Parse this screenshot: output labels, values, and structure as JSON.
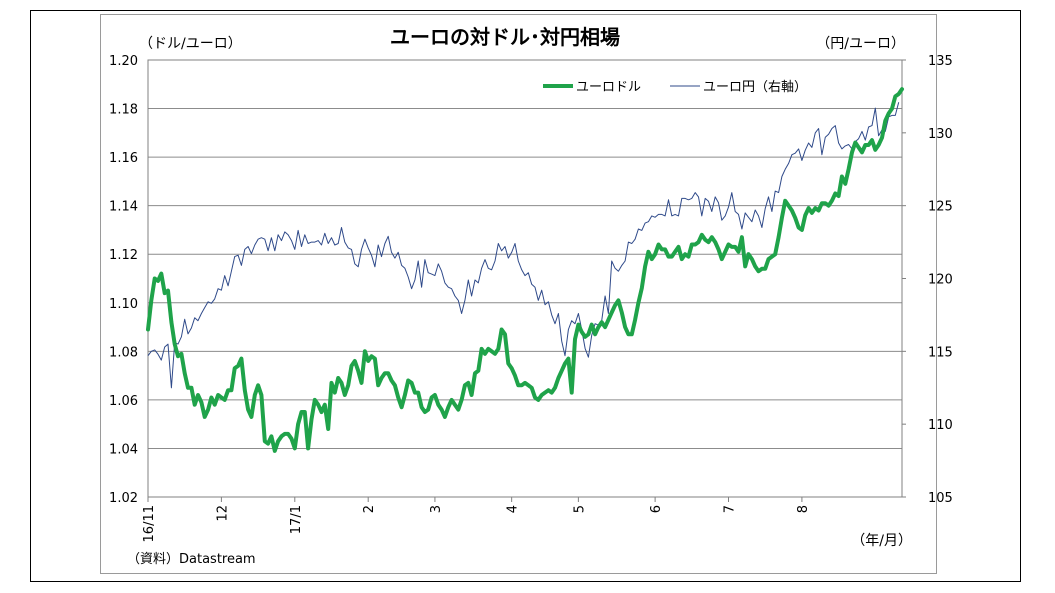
{
  "chart_data": {
    "type": "line",
    "title": "ユーロの対ドル･対円相場",
    "left_axis_unit": "（ドル/ユーロ）",
    "right_axis_unit": "（円/ユーロ）",
    "x_axis_unit": "（年/月）",
    "source": "（資料）Datastream",
    "left_ylim": [
      1.02,
      1.2
    ],
    "left_ticks": [
      "1.02",
      "1.04",
      "1.06",
      "1.08",
      "1.10",
      "1.12",
      "1.14",
      "1.16",
      "1.18",
      "1.20"
    ],
    "right_ylim": [
      105,
      135
    ],
    "right_ticks": [
      "105",
      "110",
      "115",
      "120",
      "125",
      "130",
      "135"
    ],
    "x_ticks": [
      {
        "label": "16/11",
        "pos": 0
      },
      {
        "label": "12",
        "pos": 22
      },
      {
        "label": "17/1",
        "pos": 44
      },
      {
        "label": "2",
        "pos": 66
      },
      {
        "label": "3",
        "pos": 86
      },
      {
        "label": "4",
        "pos": 109
      },
      {
        "label": "5",
        "pos": 129
      },
      {
        "label": "6",
        "pos": 152
      },
      {
        "label": "7",
        "pos": 174
      },
      {
        "label": "8",
        "pos": 196
      }
    ],
    "grid": true,
    "legend_position": "top-right",
    "series": [
      {
        "name": "ユーロドル",
        "axis": "left",
        "color": "#1fa34a",
        "values": [
          1.089,
          1.101,
          1.11,
          1.109,
          1.112,
          1.104,
          1.105,
          1.092,
          1.083,
          1.078,
          1.079,
          1.071,
          1.065,
          1.065,
          1.058,
          1.062,
          1.059,
          1.053,
          1.056,
          1.061,
          1.058,
          1.062,
          1.061,
          1.06,
          1.064,
          1.064,
          1.073,
          1.074,
          1.077,
          1.064,
          1.056,
          1.053,
          1.062,
          1.066,
          1.062,
          1.043,
          1.042,
          1.045,
          1.039,
          1.043,
          1.045,
          1.046,
          1.046,
          1.044,
          1.04,
          1.05,
          1.055,
          1.055,
          1.04,
          1.052,
          1.06,
          1.058,
          1.055,
          1.058,
          1.048,
          1.067,
          1.063,
          1.069,
          1.067,
          1.062,
          1.066,
          1.074,
          1.076,
          1.072,
          1.067,
          1.08,
          1.076,
          1.078,
          1.077,
          1.066,
          1.069,
          1.071,
          1.071,
          1.068,
          1.066,
          1.061,
          1.057,
          1.062,
          1.068,
          1.067,
          1.063,
          1.063,
          1.057,
          1.055,
          1.056,
          1.061,
          1.062,
          1.058,
          1.056,
          1.053,
          1.057,
          1.06,
          1.058,
          1.056,
          1.06,
          1.066,
          1.067,
          1.062,
          1.071,
          1.072,
          1.081,
          1.079,
          1.081,
          1.08,
          1.079,
          1.081,
          1.089,
          1.087,
          1.075,
          1.073,
          1.07,
          1.066,
          1.066,
          1.067,
          1.066,
          1.065,
          1.061,
          1.06,
          1.062,
          1.063,
          1.064,
          1.063,
          1.065,
          1.069,
          1.072,
          1.075,
          1.077,
          1.063,
          1.085,
          1.091,
          1.088,
          1.086,
          1.087,
          1.091,
          1.087,
          1.09,
          1.092,
          1.09,
          1.093,
          1.096,
          1.099,
          1.101,
          1.096,
          1.09,
          1.087,
          1.087,
          1.093,
          1.1,
          1.106,
          1.115,
          1.121,
          1.118,
          1.12,
          1.124,
          1.122,
          1.122,
          1.119,
          1.119,
          1.121,
          1.123,
          1.118,
          1.12,
          1.119,
          1.124,
          1.124,
          1.125,
          1.128,
          1.126,
          1.125,
          1.127,
          1.125,
          1.122,
          1.118,
          1.121,
          1.124,
          1.123,
          1.123,
          1.121,
          1.127,
          1.115,
          1.12,
          1.118,
          1.115,
          1.113,
          1.114,
          1.114,
          1.118,
          1.119,
          1.12,
          1.127,
          1.135,
          1.142,
          1.14,
          1.138,
          1.135,
          1.131,
          1.13,
          1.136,
          1.139,
          1.137,
          1.139,
          1.138,
          1.141,
          1.141,
          1.14,
          1.142,
          1.145,
          1.144,
          1.152,
          1.149,
          1.155,
          1.162,
          1.166,
          1.164,
          1.162,
          1.165,
          1.165,
          1.167,
          1.163,
          1.165,
          1.168,
          1.175,
          1.178,
          1.18,
          1.185,
          1.186,
          1.188
        ]
      },
      {
        "name": "ユーロ円（右軸）",
        "axis": "right",
        "color": "#2f4a8a",
        "values": [
          114.7,
          115.0,
          115.1,
          114.8,
          114.4,
          115.3,
          115.5,
          112.5,
          115.6,
          115.5,
          116.0,
          117.2,
          116.2,
          116.6,
          117.3,
          117.1,
          117.6,
          118.0,
          118.4,
          118.3,
          118.6,
          119.3,
          119.2,
          120.2,
          119.5,
          120.5,
          121.5,
          121.6,
          120.9,
          122.0,
          122.2,
          121.7,
          122.3,
          122.7,
          122.8,
          122.7,
          121.9,
          122.8,
          121.9,
          123.0,
          122.6,
          123.2,
          123.0,
          122.6,
          122.0,
          123.3,
          122.2,
          123.0,
          122.4,
          122.5,
          122.5,
          122.6,
          122.3,
          123.1,
          122.4,
          122.8,
          122.3,
          122.4,
          123.5,
          122.5,
          122.1,
          122.0,
          121.0,
          120.8,
          122.0,
          122.7,
          122.1,
          121.6,
          120.8,
          122.3,
          121.5,
          122.4,
          122.9,
          121.8,
          121.4,
          121.8,
          120.9,
          120.7,
          120.1,
          119.3,
          119.9,
          121.2,
          119.4,
          121.3,
          120.4,
          120.3,
          120.2,
          121.0,
          120.5,
          119.7,
          119.4,
          119.3,
          118.8,
          118.5,
          117.6,
          118.5,
          119.9,
          118.8,
          119.9,
          119.7,
          120.7,
          121.3,
          120.7,
          120.6,
          121.2,
          122.4,
          121.9,
          122.2,
          121.4,
          121.8,
          122.4,
          121.2,
          120.6,
          120.2,
          120.4,
          119.6,
          119.4,
          118.5,
          119.2,
          118.2,
          118.4,
          117.5,
          116.9,
          117.6,
          115.7,
          114.7,
          116.5,
          117.1,
          116.9,
          117.6,
          116.5,
          115.2,
          114.6,
          116.1,
          116.9,
          116.8,
          117.1,
          118.8,
          117.6,
          121.2,
          120.7,
          120.5,
          120.9,
          121.2,
          122.5,
          122.4,
          122.7,
          123.4,
          123.3,
          123.8,
          123.9,
          124.3,
          124.2,
          124.4,
          124.4,
          124.3,
          125.4,
          124.3,
          124.4,
          124.3,
          125.5,
          125.5,
          125.4,
          125.5,
          125.9,
          125.6,
          124.3,
          125.5,
          125.3,
          124.6,
          125.6,
          125.2,
          124.0,
          124.3,
          124.9,
          125.9,
          124.6,
          124.4,
          123.4,
          124.5,
          124.2,
          123.9,
          124.7,
          124.3,
          123.5,
          124.8,
          125.6,
          124.6,
          126.0,
          125.9,
          127.0,
          127.5,
          127.9,
          128.5,
          128.6,
          128.9,
          128.1,
          128.8,
          129.3,
          129.0,
          130.0,
          130.3,
          128.5,
          129.7,
          129.9,
          130.3,
          130.5,
          129.3,
          128.9,
          129.1,
          129.2,
          128.9,
          129.4,
          129.6,
          130.1,
          129.5,
          130.4,
          130.5,
          131.7,
          129.8,
          130.2,
          130.1,
          131.1,
          131.2,
          131.2,
          132.1
        ]
      }
    ]
  }
}
